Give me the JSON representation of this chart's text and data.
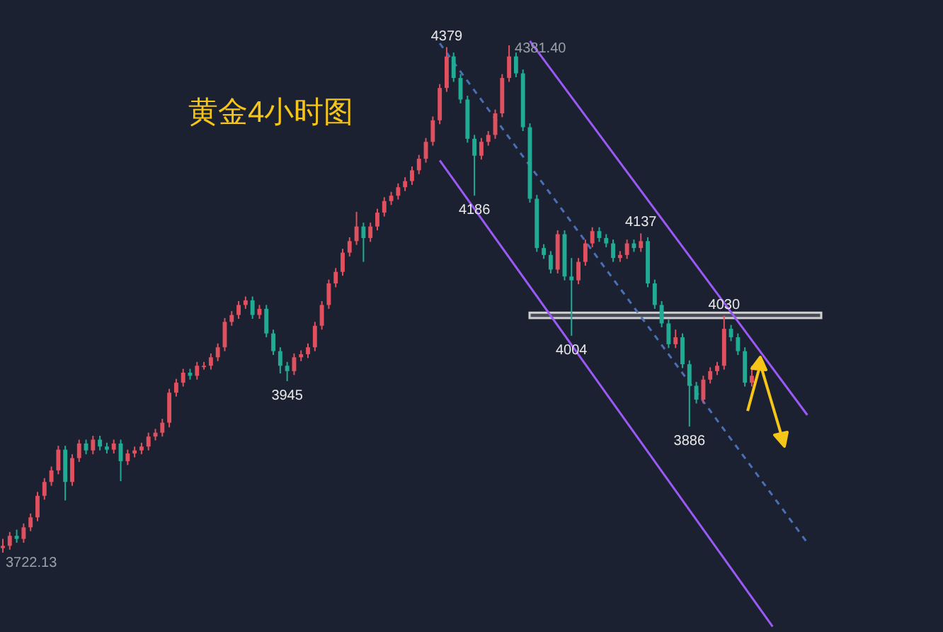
{
  "chart_data": {
    "type": "candlestick",
    "title": "黄金4小时图",
    "categories": [
      null,
      null,
      null,
      null,
      null,
      null,
      null,
      null,
      null,
      null,
      null,
      null,
      null,
      null,
      null,
      null,
      null,
      null,
      null,
      null,
      null,
      null,
      null,
      null,
      null,
      null,
      null,
      null,
      null,
      null,
      null,
      null,
      null,
      null,
      null,
      null,
      null,
      null,
      null,
      null,
      null,
      null,
      null,
      null,
      null,
      null,
      null,
      null,
      null,
      null,
      null,
      null,
      null,
      null,
      null,
      null,
      null,
      null,
      null,
      null,
      null,
      null,
      null,
      null,
      null,
      null,
      null,
      null,
      null,
      null,
      null,
      null,
      null,
      null,
      null,
      null,
      null,
      null,
      null,
      null,
      null,
      null,
      null,
      null,
      null,
      null,
      null,
      null,
      null,
      null,
      null,
      null,
      null,
      null,
      null,
      null,
      null,
      null,
      null,
      null,
      null,
      null,
      null,
      null,
      null,
      null,
      null,
      null,
      null,
      null,
      null,
      null,
      null,
      null,
      null,
      null,
      null
    ],
    "ohlc": [
      [
        3728,
        3740,
        3722.13,
        3731
      ],
      [
        3731,
        3749,
        3726,
        3744
      ],
      [
        3744,
        3752,
        3735,
        3740
      ],
      [
        3740,
        3760,
        3735,
        3755
      ],
      [
        3755,
        3773,
        3750,
        3768
      ],
      [
        3768,
        3801,
        3763,
        3796
      ],
      [
        3796,
        3819,
        3791,
        3814
      ],
      [
        3814,
        3834,
        3809,
        3829
      ],
      [
        3829,
        3861,
        3824,
        3856
      ],
      [
        3856,
        3861,
        3790,
        3814
      ],
      [
        3814,
        3850,
        3809,
        3845
      ],
      [
        3845,
        3869,
        3840,
        3864
      ],
      [
        3864,
        3869,
        3850,
        3855
      ],
      [
        3855,
        3874,
        3850,
        3869
      ],
      [
        3869,
        3874,
        3855,
        3860
      ],
      [
        3860,
        3865,
        3851,
        3856
      ],
      [
        3856,
        3869,
        3851,
        3864
      ],
      [
        3864,
        3869,
        3815,
        3841
      ],
      [
        3841,
        3856,
        3836,
        3851
      ],
      [
        3851,
        3860,
        3846,
        3855
      ],
      [
        3855,
        3865,
        3850,
        3860
      ],
      [
        3860,
        3878,
        3855,
        3873
      ],
      [
        3873,
        3883,
        3868,
        3878
      ],
      [
        3878,
        3896,
        3873,
        3891
      ],
      [
        3891,
        3935,
        3885,
        3930
      ],
      [
        3930,
        3948,
        3925,
        3943
      ],
      [
        3943,
        3961,
        3938,
        3956
      ],
      [
        3956,
        3961,
        3947,
        3952
      ],
      [
        3952,
        3970,
        3947,
        3965
      ],
      [
        3965,
        3970,
        3960,
        3965
      ],
      [
        3965,
        3981,
        3960,
        3976
      ],
      [
        3976,
        3994,
        3971,
        3989
      ],
      [
        3989,
        4027,
        3984,
        4022
      ],
      [
        4022,
        4036,
        4017,
        4031
      ],
      [
        4031,
        4049,
        4026,
        4044
      ],
      [
        4044,
        4055,
        4039,
        4050
      ],
      [
        4050,
        4055,
        4026,
        4031
      ],
      [
        4031,
        4044,
        4026,
        4039
      ],
      [
        4039,
        4044,
        4002,
        4007
      ],
      [
        4007,
        4012,
        3979,
        3984
      ],
      [
        3984,
        3989,
        3955,
        3965
      ],
      [
        3965,
        3970,
        3945,
        3958
      ],
      [
        3958,
        3981,
        3953,
        3976
      ],
      [
        3976,
        3985,
        3971,
        3980
      ],
      [
        3980,
        3994,
        3975,
        3989
      ],
      [
        3989,
        4022,
        3984,
        4017
      ],
      [
        4017,
        4049,
        4012,
        4044
      ],
      [
        4044,
        4077,
        4039,
        4072
      ],
      [
        4072,
        4092,
        4067,
        4087
      ],
      [
        4087,
        4117,
        4082,
        4112
      ],
      [
        4112,
        4132,
        4107,
        4127
      ],
      [
        4127,
        4165,
        4122,
        4146
      ],
      [
        4146,
        4151,
        4100,
        4131
      ],
      [
        4131,
        4151,
        4126,
        4146
      ],
      [
        4146,
        4169,
        4141,
        4164
      ],
      [
        4164,
        4184,
        4159,
        4179
      ],
      [
        4179,
        4191,
        4174,
        4186
      ],
      [
        4186,
        4202,
        4181,
        4197
      ],
      [
        4197,
        4210,
        4192,
        4205
      ],
      [
        4205,
        4224,
        4200,
        4219
      ],
      [
        4219,
        4239,
        4214,
        4234
      ],
      [
        4234,
        4261,
        4229,
        4256
      ],
      [
        4256,
        4289,
        4251,
        4284
      ],
      [
        4284,
        4331,
        4279,
        4326
      ],
      [
        4326,
        4379,
        4321,
        4367
      ],
      [
        4367,
        4372,
        4334,
        4339
      ],
      [
        4339,
        4344,
        4306,
        4311
      ],
      [
        4311,
        4316,
        4255,
        4260
      ],
      [
        4260,
        4265,
        4186,
        4238
      ],
      [
        4238,
        4261,
        4233,
        4256
      ],
      [
        4256,
        4270,
        4251,
        4265
      ],
      [
        4265,
        4298,
        4260,
        4293
      ],
      [
        4293,
        4344,
        4288,
        4339
      ],
      [
        4339,
        4381.4,
        4334,
        4367
      ],
      [
        4367,
        4372,
        4340,
        4345
      ],
      [
        4345,
        4350,
        4270,
        4275
      ],
      [
        4275,
        4280,
        4177,
        4182
      ],
      [
        4182,
        4187,
        4113,
        4118
      ],
      [
        4118,
        4123,
        4104,
        4109
      ],
      [
        4109,
        4114,
        4085,
        4090
      ],
      [
        4090,
        4141,
        4085,
        4136
      ],
      [
        4136,
        4141,
        4076,
        4081
      ],
      [
        4081,
        4105,
        4004,
        4076
      ],
      [
        4076,
        4105,
        4071,
        4100
      ],
      [
        4100,
        4129,
        4095,
        4124
      ],
      [
        4124,
        4145,
        4119,
        4140
      ],
      [
        4140,
        4145,
        4126,
        4131
      ],
      [
        4131,
        4136,
        4119,
        4124
      ],
      [
        4124,
        4129,
        4100,
        4105
      ],
      [
        4105,
        4114,
        4100,
        4109
      ],
      [
        4109,
        4129,
        4104,
        4124
      ],
      [
        4124,
        4129,
        4113,
        4118
      ],
      [
        4118,
        4137,
        4113,
        4127
      ],
      [
        4127,
        4132,
        4067,
        4072
      ],
      [
        4072,
        4077,
        4039,
        4044
      ],
      [
        4044,
        4049,
        4015,
        4020
      ],
      [
        4020,
        4025,
        3988,
        3993
      ],
      [
        3993,
        4012,
        3988,
        4002
      ],
      [
        4002,
        4007,
        3962,
        3967
      ],
      [
        3967,
        3972,
        3886,
        3939
      ],
      [
        3939,
        3944,
        3916,
        3921
      ],
      [
        3921,
        3952,
        3916,
        3947
      ],
      [
        3947,
        3963,
        3942,
        3958
      ],
      [
        3958,
        3970,
        3953,
        3965
      ],
      [
        3965,
        4030,
        3960,
        4013
      ],
      [
        4013,
        4018,
        3997,
        4002
      ],
      [
        4002,
        4007,
        3979,
        3984
      ],
      [
        3984,
        3989,
        3938,
        3943
      ],
      [
        3943,
        3965,
        3938,
        3952
      ],
      null,
      null,
      null,
      null,
      null,
      null,
      null,
      null
    ],
    "colors": [
      "#e0505e",
      "#e0505e",
      "#22ab94",
      "#e0505e",
      "#e0505e",
      "#e0505e",
      "#e0505e",
      "#e0505e",
      "#e0505e",
      "#22ab94",
      "#e0505e",
      "#e0505e",
      "#22ab94",
      "#e0505e",
      "#22ab94",
      "#22ab94",
      "#e0505e",
      "#22ab94",
      "#e0505e",
      "#e0505e",
      "#e0505e",
      "#e0505e",
      "#e0505e",
      "#e0505e",
      "#e0505e",
      "#e0505e",
      "#e0505e",
      "#22ab94",
      "#e0505e",
      "#e0505e",
      "#e0505e",
      "#e0505e",
      "#e0505e",
      "#e0505e",
      "#e0505e",
      "#e0505e",
      "#22ab94",
      "#e0505e",
      "#22ab94",
      "#22ab94",
      "#22ab94",
      "#22ab94",
      "#e0505e",
      "#e0505e",
      "#e0505e",
      "#e0505e",
      "#e0505e",
      "#e0505e",
      "#e0505e",
      "#e0505e",
      "#e0505e",
      "#e0505e",
      "#22ab94",
      "#e0505e",
      "#e0505e",
      "#e0505e",
      "#e0505e",
      "#e0505e",
      "#e0505e",
      "#e0505e",
      "#e0505e",
      "#e0505e",
      "#e0505e",
      "#e0505e",
      "#e0505e",
      "#22ab94",
      "#22ab94",
      "#22ab94",
      "#22ab94",
      "#e0505e",
      "#e0505e",
      "#e0505e",
      "#e0505e",
      "#e0505e",
      "#22ab94",
      "#22ab94",
      "#22ab94",
      "#22ab94",
      "#22ab94",
      "#22ab94",
      "#e0505e",
      "#22ab94",
      "#22ab94",
      "#e0505e",
      "#e0505e",
      "#e0505e",
      "#22ab94",
      "#22ab94",
      "#22ab94",
      "#e0505e",
      "#e0505e",
      "#22ab94",
      "#e0505e",
      "#22ab94",
      "#22ab94",
      "#22ab94",
      "#22ab94",
      "#e0505e",
      "#22ab94",
      "#22ab94",
      "#22ab94",
      "#e0505e",
      "#e0505e",
      "#e0505e",
      "#e0505e",
      "#22ab94",
      "#22ab94",
      "#22ab94",
      "#e0505e",
      null,
      null,
      null,
      null,
      null,
      null,
      null,
      null
    ],
    "series": [
      {
        "type": "line",
        "color": "#9b59f5",
        "line_style": "solid",
        "values": [
          null,
          null,
          null,
          null,
          null,
          null,
          null,
          null,
          null,
          null,
          null,
          null,
          null,
          null,
          null,
          null,
          null,
          null,
          null,
          null,
          null,
          null,
          null,
          null,
          null,
          null,
          null,
          null,
          null,
          null,
          null,
          null,
          null,
          null,
          null,
          null,
          null,
          null,
          null,
          null,
          null,
          null,
          null,
          null,
          null,
          null,
          null,
          null,
          null,
          null,
          null,
          null,
          null,
          null,
          null,
          null,
          null,
          null,
          null,
          null,
          null,
          null,
          null,
          null,
          null,
          null,
          null,
          null,
          null,
          null,
          null,
          null,
          null,
          null,
          null,
          null,
          4387,
          null,
          null,
          null,
          null,
          null,
          null,
          null,
          null,
          null,
          null,
          null,
          null,
          null,
          null,
          null,
          null,
          null,
          null,
          null,
          null,
          null,
          null,
          null,
          null,
          null,
          null,
          null,
          null,
          null,
          null,
          null,
          null,
          null,
          null,
          null,
          null,
          null,
          null,
          null,
          3901
        ]
      },
      {
        "type": "line",
        "color": "#9b59f5",
        "line_style": "solid",
        "values": [
          null,
          null,
          null,
          null,
          null,
          null,
          null,
          null,
          null,
          null,
          null,
          null,
          null,
          null,
          null,
          null,
          null,
          null,
          null,
          null,
          null,
          null,
          null,
          null,
          null,
          null,
          null,
          null,
          null,
          null,
          null,
          null,
          null,
          null,
          null,
          null,
          null,
          null,
          null,
          null,
          null,
          null,
          null,
          null,
          null,
          null,
          null,
          null,
          null,
          null,
          null,
          null,
          null,
          null,
          null,
          null,
          null,
          null,
          null,
          null,
          null,
          null,
          null,
          4232,
          null,
          null,
          null,
          null,
          null,
          null,
          null,
          null,
          null,
          null,
          null,
          null,
          null,
          null,
          null,
          null,
          null,
          null,
          null,
          null,
          null,
          null,
          null,
          null,
          null,
          null,
          null,
          null,
          null,
          null,
          null,
          null,
          null,
          null,
          null,
          null,
          null,
          null,
          null,
          null,
          null,
          null,
          null,
          null,
          null,
          null,
          null,
          3626,
          null,
          null,
          null,
          null,
          null
        ]
      },
      {
        "type": "line",
        "color": "#4a6fb5",
        "line_style": "dashed",
        "values": [
          null,
          null,
          null,
          null,
          null,
          null,
          null,
          null,
          null,
          null,
          null,
          null,
          null,
          null,
          null,
          null,
          null,
          null,
          null,
          null,
          null,
          null,
          null,
          null,
          null,
          null,
          null,
          null,
          null,
          null,
          null,
          null,
          null,
          null,
          null,
          null,
          null,
          null,
          null,
          null,
          null,
          null,
          null,
          null,
          null,
          null,
          null,
          null,
          null,
          null,
          null,
          null,
          null,
          null,
          null,
          null,
          null,
          null,
          null,
          null,
          null,
          null,
          null,
          4384,
          null,
          null,
          null,
          null,
          null,
          null,
          null,
          null,
          null,
          null,
          null,
          null,
          null,
          null,
          null,
          null,
          null,
          null,
          null,
          null,
          null,
          null,
          null,
          null,
          null,
          null,
          null,
          null,
          null,
          null,
          null,
          null,
          null,
          null,
          null,
          null,
          null,
          null,
          null,
          null,
          null,
          null,
          null,
          null,
          null,
          null,
          null,
          null,
          null,
          null,
          null,
          null,
          3735
        ]
      }
    ],
    "bands": [
      {
        "axis": "y",
        "from": 4027,
        "to": 4034,
        "color": "#d0d0d0"
      }
    ],
    "annotations": [
      "3722.13",
      {
        "text": "3945",
        "y": 3945
      },
      {
        "text": "4379",
        "y": 4379
      },
      {
        "text": "4381.40",
        "y": 4381.4
      },
      {
        "text": "4186",
        "y": 4186
      },
      {
        "text": "4004",
        "y": 4004
      },
      {
        "text": "4137",
        "y": 4137
      },
      {
        "text": "4030",
        "y": 4030
      },
      {
        "text": "3886",
        "y": 3886
      }
    ]
  }
}
